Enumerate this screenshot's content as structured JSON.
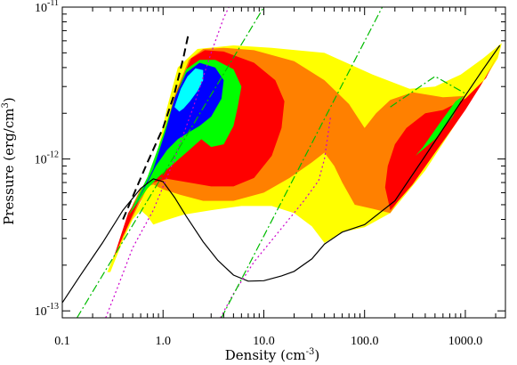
{
  "chart_data": {
    "type": "contour",
    "xlabel": "Density (cm",
    "xlabel_exp": "-3",
    "xlabel_end": ")",
    "ylabel": "Pressure (erg/cm",
    "ylabel_exp": "3",
    "ylabel_end": ")",
    "x_scale": "log",
    "y_scale": "log",
    "xlim": [
      0.1,
      2500
    ],
    "ylim": [
      9e-14,
      1e-11
    ],
    "x_ticks": [
      {
        "value": 0.1,
        "label": "0.1"
      },
      {
        "value": 1,
        "label": "1.0"
      },
      {
        "value": 10,
        "label": "10.0"
      },
      {
        "value": 100,
        "label": "100.0"
      },
      {
        "value": 1000,
        "label": "1000.0"
      }
    ],
    "y_ticks": [
      {
        "value": 1e-13,
        "mant": "10",
        "exp": "-13"
      },
      {
        "value": 1e-12,
        "mant": "10",
        "exp": "-12"
      },
      {
        "value": 1e-11,
        "mant": "10",
        "exp": "-11"
      }
    ],
    "contour_levels": [
      {
        "level": 1,
        "color": "#ffff00",
        "polygon": [
          [
            0.28,
            1.8e-13
          ],
          [
            0.4,
            3.2e-13
          ],
          [
            0.6,
            5.2e-13
          ],
          [
            0.9,
            1.2e-12
          ],
          [
            1.1,
            2.2e-12
          ],
          [
            1.4,
            4e-12
          ],
          [
            2.2,
            5.3e-12
          ],
          [
            5,
            5.6e-12
          ],
          [
            12,
            5.4e-12
          ],
          [
            40,
            5e-12
          ],
          [
            120,
            3.6e-12
          ],
          [
            280,
            2.9e-12
          ],
          [
            500,
            3e-12
          ],
          [
            900,
            3.6e-12
          ],
          [
            1500,
            4.6e-12
          ],
          [
            2300,
            5.8e-12
          ],
          [
            2100,
            4.6e-12
          ],
          [
            1400,
            3e-12
          ],
          [
            800,
            1.7e-12
          ],
          [
            400,
            8.4e-13
          ],
          [
            180,
            4.4e-13
          ],
          [
            100,
            3.55e-13
          ],
          [
            60,
            3.3e-13
          ],
          [
            40,
            2.8e-13
          ],
          [
            30,
            3.6e-13
          ],
          [
            20,
            4.4e-13
          ],
          [
            12,
            4.9e-13
          ],
          [
            6,
            4.9e-13
          ],
          [
            3,
            4.6e-13
          ],
          [
            1.6,
            4.3e-13
          ],
          [
            1.0,
            3.9e-13
          ],
          [
            0.8,
            3.7e-13
          ],
          [
            0.7,
            4.2e-13
          ],
          [
            0.6,
            4.6e-13
          ],
          [
            0.5,
            4e-13
          ],
          [
            0.4,
            2.9e-13
          ],
          [
            0.3,
            1.8e-13
          ]
        ]
      },
      {
        "level": 2,
        "color": "#ff8000",
        "polygon": [
          [
            0.3,
            2e-13
          ],
          [
            0.45,
            3.6e-13
          ],
          [
            0.7,
            6.5e-13
          ],
          [
            1.0,
            1.4e-12
          ],
          [
            1.3,
            2.6e-12
          ],
          [
            1.8,
            4.5e-12
          ],
          [
            2.5,
            5.3e-12
          ],
          [
            4,
            5.4e-12
          ],
          [
            8,
            5.2e-12
          ],
          [
            20,
            4.4e-12
          ],
          [
            40,
            3.3e-12
          ],
          [
            70,
            2.3e-12
          ],
          [
            100,
            1.6e-12
          ],
          [
            130,
            2e-12
          ],
          [
            180,
            2.45e-12
          ],
          [
            300,
            2.75e-12
          ],
          [
            600,
            2.55e-12
          ],
          [
            1000,
            2.6e-12
          ],
          [
            800,
            1.9e-12
          ],
          [
            400,
            1e-12
          ],
          [
            180,
            4.4e-13
          ],
          [
            120,
            4.7e-13
          ],
          [
            80,
            5e-13
          ],
          [
            60,
            7e-13
          ],
          [
            50,
            9e-13
          ],
          [
            40,
            1.1e-12
          ],
          [
            30,
            9.5e-13
          ],
          [
            18,
            7.5e-13
          ],
          [
            10,
            6e-13
          ],
          [
            5,
            5.3e-13
          ],
          [
            2.5,
            5.3e-13
          ],
          [
            1.5,
            5.8e-13
          ],
          [
            1.0,
            6.3e-13
          ],
          [
            0.8,
            6.8e-13
          ],
          [
            0.6,
            6.4e-13
          ],
          [
            0.5,
            5e-13
          ],
          [
            0.4,
            3e-13
          ]
        ]
      },
      {
        "level": 3,
        "color": "#ff0000",
        "polygon": [
          [
            0.32,
            2.2e-13
          ],
          [
            0.5,
            4.3e-13
          ],
          [
            0.8,
            8.5e-13
          ],
          [
            1.1,
            1.6e-12
          ],
          [
            1.4,
            2.9e-12
          ],
          [
            1.9,
            4.6e-12
          ],
          [
            2.6,
            5.2e-12
          ],
          [
            4,
            5.1e-12
          ],
          [
            8,
            4.3e-12
          ],
          [
            13,
            3.3e-12
          ],
          [
            16,
            2.4e-12
          ],
          [
            15,
            1.6e-12
          ],
          [
            12,
            1.05e-12
          ],
          [
            8,
            7.5e-13
          ],
          [
            5,
            6.6e-13
          ],
          [
            3,
            6.6e-13
          ],
          [
            1.8,
            7e-13
          ],
          [
            1.1,
            7.4e-13
          ],
          [
            0.8,
            7e-13
          ],
          [
            0.6,
            6e-13
          ],
          [
            0.45,
            4.4e-13
          ]
        ]
      },
      {
        "level": 3,
        "color": "#ff0000",
        "polygon": [
          [
            180,
            4.6e-13
          ],
          [
            300,
            6.8e-13
          ],
          [
            500,
            1.1e-12
          ],
          [
            750,
            1.6e-12
          ],
          [
            1000,
            2.1e-12
          ],
          [
            1400,
            3e-12
          ],
          [
            1800,
            4e-12
          ],
          [
            2200,
            5.2e-12
          ],
          [
            1600,
            3.4e-12
          ],
          [
            1000,
            2.5e-12
          ],
          [
            600,
            2.1e-12
          ],
          [
            400,
            2e-12
          ],
          [
            260,
            1.6e-12
          ],
          [
            200,
            1.25e-12
          ],
          [
            170,
            9e-13
          ],
          [
            160,
            6.5e-13
          ]
        ]
      },
      {
        "level": 4,
        "color": "#00ff00",
        "polygon": [
          [
            0.45,
            4.2e-13
          ],
          [
            0.7,
            7.6e-13
          ],
          [
            1.0,
            1.45e-12
          ],
          [
            1.3,
            2.5e-12
          ],
          [
            1.7,
            3.9e-12
          ],
          [
            2.3,
            4.5e-12
          ],
          [
            3.3,
            4.5e-12
          ],
          [
            5,
            3.9e-12
          ],
          [
            6,
            3e-12
          ],
          [
            5.5,
            2.2e-12
          ],
          [
            5,
            1.65e-12
          ],
          [
            4,
            1.25e-12
          ],
          [
            3,
            1.2e-12
          ],
          [
            2.4,
            1.35e-12
          ],
          [
            1.7,
            1.1e-12
          ],
          [
            1.2,
            9e-13
          ],
          [
            0.9,
            7.6e-13
          ],
          [
            0.7,
            6.4e-13
          ]
        ]
      },
      {
        "level": 4,
        "color": "#00ff00",
        "polygon": [
          [
            320,
            1.05e-12
          ],
          [
            500,
            1.35e-12
          ],
          [
            750,
            1.9e-12
          ],
          [
            950,
            2.6e-12
          ],
          [
            800,
            2.4e-12
          ],
          [
            550,
            1.7e-12
          ],
          [
            380,
            1.2e-12
          ]
        ]
      },
      {
        "level": 5,
        "color": "#0000ff",
        "polygon": [
          [
            0.5,
            4.6e-13
          ],
          [
            0.8,
            8.6e-13
          ],
          [
            1.05,
            1.5e-12
          ],
          [
            1.3,
            2.5e-12
          ],
          [
            1.7,
            3.7e-12
          ],
          [
            2.3,
            4.3e-12
          ],
          [
            3.3,
            4e-12
          ],
          [
            4,
            3.3e-12
          ],
          [
            3.8,
            2.5e-12
          ],
          [
            3,
            1.9e-12
          ],
          [
            2.3,
            1.65e-12
          ],
          [
            1.8,
            1.5e-12
          ],
          [
            1.4,
            1.35e-12
          ],
          [
            1.1,
            1.15e-12
          ],
          [
            0.85,
            9e-13
          ],
          [
            0.7,
            7e-13
          ]
        ]
      },
      {
        "level": 6,
        "color": "#00ffff",
        "polygon": [
          [
            1.3,
            2.2e-12
          ],
          [
            1.5,
            2.9e-12
          ],
          [
            1.75,
            3.5e-12
          ],
          [
            2.1,
            3.95e-12
          ],
          [
            2.5,
            3.85e-12
          ],
          [
            2.5,
            3.3e-12
          ],
          [
            2.2,
            2.8e-12
          ],
          [
            1.85,
            2.4e-12
          ],
          [
            1.6,
            2.15e-12
          ],
          [
            1.45,
            2.05e-12
          ]
        ]
      }
    ],
    "lines": [
      {
        "style": "solid",
        "color": "#000000",
        "points": [
          [
            0.1,
            1.13e-13
          ],
          [
            0.15,
            1.7e-13
          ],
          [
            0.25,
            2.8e-13
          ],
          [
            0.4,
            4.6e-13
          ],
          [
            0.6,
            6.4e-13
          ],
          [
            0.8,
            7.4e-13
          ],
          [
            1.0,
            7.1e-13
          ],
          [
            1.3,
            5.6e-13
          ],
          [
            1.7,
            4.2e-13
          ],
          [
            2.5,
            2.85e-13
          ],
          [
            3.5,
            2.15e-13
          ],
          [
            5,
            1.72e-13
          ],
          [
            7,
            1.57e-13
          ],
          [
            10,
            1.58e-13
          ],
          [
            15,
            1.7e-13
          ],
          [
            20,
            1.82e-13
          ],
          [
            30,
            2.2e-13
          ],
          [
            40,
            2.75e-13
          ],
          [
            60,
            3.3e-13
          ],
          [
            100,
            3.7e-13
          ],
          [
            200,
            5.3e-13
          ],
          [
            400,
            1.05e-12
          ],
          [
            800,
            2.1e-12
          ],
          [
            1500,
            3.9e-12
          ],
          [
            2200,
            5.6e-12
          ]
        ]
      },
      {
        "style": "dashed",
        "color": "#000000",
        "points": [
          [
            0.4,
            4e-13
          ],
          [
            0.7,
            9.5e-13
          ],
          [
            1.0,
            1.6e-12
          ],
          [
            1.3,
            2.7e-12
          ],
          [
            1.6,
            4.7e-12
          ],
          [
            1.8,
            6.8e-12
          ]
        ]
      },
      {
        "style": "dotted",
        "color": "#cc00cc",
        "points": [
          [
            0.27,
            9e-14
          ],
          [
            0.35,
            1.4e-13
          ],
          [
            0.5,
            2.6e-13
          ],
          [
            0.8,
            4.6e-13
          ],
          [
            1.3,
            1e-12
          ],
          [
            2.0,
            2.2e-12
          ],
          [
            3.0,
            5e-12
          ],
          [
            4.0,
            8.5e-12
          ],
          [
            4.5,
            1e-11
          ]
        ]
      },
      {
        "style": "dotted",
        "color": "#cc00cc",
        "points": [
          [
            3.7,
            9e-14
          ],
          [
            5,
            1.3e-13
          ],
          [
            8,
            2.1e-13
          ],
          [
            15,
            3.5e-13
          ],
          [
            25,
            5.3e-13
          ],
          [
            35,
            7.2e-13
          ],
          [
            40,
            1e-12
          ],
          [
            43,
            1.4e-12
          ],
          [
            46,
            1.9e-12
          ]
        ]
      },
      {
        "style": "dashdot",
        "color": "#00bb00",
        "points": [
          [
            0.14,
            9e-14
          ],
          [
            10,
            1e-11
          ]
        ]
      },
      {
        "style": "dashdot",
        "color": "#00bb00",
        "points": [
          [
            3.8,
            9e-14
          ],
          [
            150,
            1e-11
          ]
        ]
      },
      {
        "style": "dashdot",
        "color": "#00bb00",
        "points": [
          [
            180,
            2.2e-12
          ],
          [
            500,
            3.5e-12
          ],
          [
            1000,
            2.7e-12
          ]
        ]
      }
    ]
  }
}
